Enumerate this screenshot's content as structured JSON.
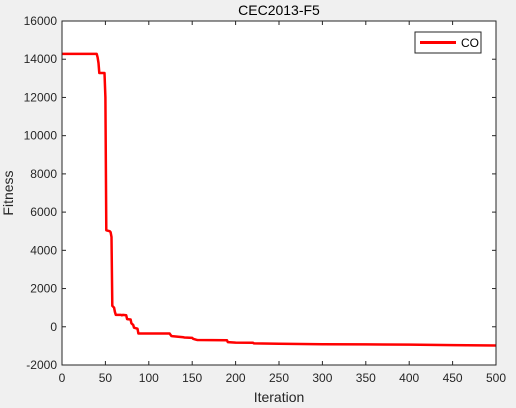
{
  "chart_data": {
    "type": "line",
    "title": "CEC2013-F5",
    "xlabel": "Iteration",
    "ylabel": "Fitness",
    "xlim": [
      0,
      500
    ],
    "ylim": [
      -2000,
      16000
    ],
    "xticks": [
      0,
      50,
      100,
      150,
      200,
      250,
      300,
      350,
      400,
      450,
      500
    ],
    "yticks": [
      -2000,
      0,
      2000,
      4000,
      6000,
      8000,
      10000,
      12000,
      14000,
      16000
    ],
    "xtick_labels": [
      "0",
      "50",
      "100",
      "150",
      "200",
      "250",
      "300",
      "350",
      "400",
      "450",
      "500"
    ],
    "ytick_labels": [
      "-2000",
      "0",
      "2000",
      "4000",
      "6000",
      "8000",
      "10000",
      "12000",
      "14000",
      "16000"
    ],
    "grid": false,
    "legend": "top-right",
    "series": [
      {
        "name": "CO",
        "color": "#ff0000",
        "x": [
          0,
          40,
          41,
          42,
          43,
          49,
          50,
          51,
          55,
          56,
          57,
          58,
          60,
          61,
          62,
          68,
          69,
          70,
          74,
          75,
          79,
          80,
          82,
          83,
          87,
          88,
          124,
          125,
          126,
          128,
          140,
          141,
          150,
          151,
          155,
          156,
          190,
          191,
          200,
          220,
          221,
          250,
          300,
          350,
          400,
          450,
          500
        ],
        "y": [
          14280,
          14280,
          14100,
          13800,
          13280,
          13280,
          12000,
          5050,
          5000,
          4950,
          4700,
          1100,
          1000,
          780,
          620,
          620,
          600,
          620,
          600,
          400,
          380,
          180,
          100,
          -50,
          -100,
          -350,
          -350,
          -420,
          -480,
          -500,
          -550,
          -560,
          -580,
          -630,
          -680,
          -690,
          -700,
          -800,
          -830,
          -840,
          -870,
          -890,
          -910,
          -920,
          -930,
          -960,
          -980
        ]
      }
    ]
  }
}
